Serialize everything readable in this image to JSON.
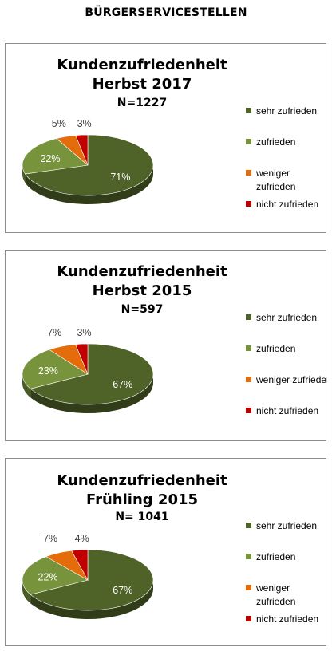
{
  "page": {
    "title": "BÜRGERSERVICESTELLEN"
  },
  "colors": {
    "sehr_zufrieden": "#4f6228",
    "zufrieden": "#77933c",
    "weniger_zufrieden": "#e46c0a",
    "nicht_zufrieden": "#c00000"
  },
  "chart_data": [
    {
      "type": "pie",
      "title": "Kundenzufriedenheit",
      "subtitle": "Herbst 2017",
      "n_label": "N=1227",
      "categories": [
        "sehr zufrieden",
        "zufrieden",
        "weniger zufrieden",
        "nicht zufrieden"
      ],
      "legend_lines": [
        [
          "sehr zufrieden"
        ],
        [
          "zufrieden"
        ],
        [
          "weniger",
          "zufrieden"
        ],
        [
          "nicht zufrieden"
        ]
      ],
      "values": [
        71,
        22,
        5,
        3
      ],
      "value_labels": [
        "71%",
        "22%",
        "5%",
        "3%"
      ],
      "legend": "right",
      "three_d": true
    },
    {
      "type": "pie",
      "title": "Kundenzufriedenheit",
      "subtitle": "Herbst 2015",
      "n_label": "N=597",
      "categories": [
        "sehr zufrieden",
        "zufrieden",
        "weniger zufrieden",
        "nicht zufrieden"
      ],
      "legend_lines": [
        [
          "sehr zufrieden"
        ],
        [
          "zufrieden"
        ],
        [
          "weniger zufrieden"
        ],
        [
          "nicht zufrieden"
        ]
      ],
      "values": [
        67,
        23,
        7,
        3
      ],
      "value_labels": [
        "67%",
        "23%",
        "7%",
        "3%"
      ],
      "legend": "right",
      "three_d": true
    },
    {
      "type": "pie",
      "title": "Kundenzufriedenheit",
      "subtitle": "Frühling  2015",
      "n_label": "N= 1041",
      "categories": [
        "sehr zufrieden",
        "zufrieden",
        "weniger zufrieden",
        "nicht zufrieden"
      ],
      "legend_lines": [
        [
          "sehr zufrieden"
        ],
        [
          "zufrieden"
        ],
        [
          "weniger",
          "zufrieden"
        ],
        [
          "nicht zufrieden"
        ]
      ],
      "values": [
        67,
        22,
        7,
        4
      ],
      "value_labels": [
        "67%",
        "22%",
        "7%",
        "4%"
      ],
      "legend": "right",
      "three_d": true
    }
  ]
}
